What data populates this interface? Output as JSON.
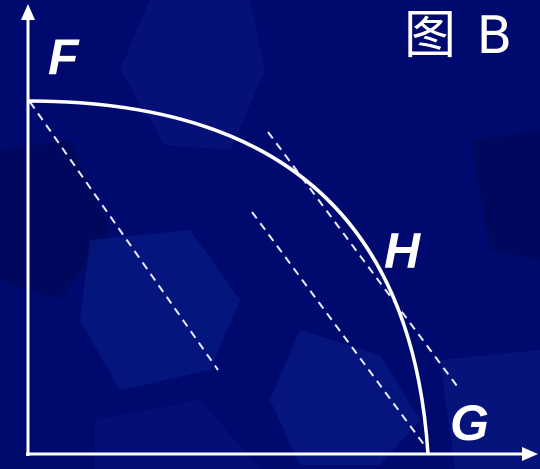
{
  "figure_title": "图 B",
  "labels": {
    "f": "F",
    "g": "G",
    "h": "H"
  },
  "colors": {
    "background": "#000a6e",
    "shape_dark": "#00085a",
    "shape_light": "#0a1f8c",
    "line": "#ffffff",
    "dashed": "#e8ecff"
  }
}
